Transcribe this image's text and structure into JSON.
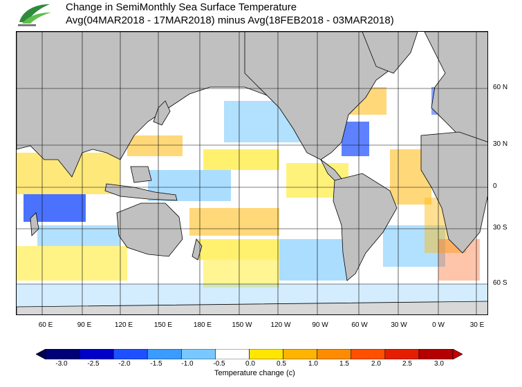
{
  "title": {
    "line1": "Change in SemiMonthly Sea Surface Temperature",
    "line2": "Avg(04MAR2018 - 17MAR2018) minus Avg(18FEB2018 - 03MAR2018)"
  },
  "map": {
    "projection": "equirectangular",
    "lon_range": [
      "40 E",
      "40 E (+360)"
    ],
    "lat_range": [
      "75 N",
      "75 S"
    ],
    "land_color": "#c0c0c0",
    "grid": true,
    "lat_labels": [
      "60 N",
      "30 N",
      "0",
      "30 S",
      "60 S"
    ],
    "lon_labels": [
      "60 E",
      "90 E",
      "120 E",
      "150 E",
      "180 E",
      "150 W",
      "120 W",
      "90 W",
      "60 W",
      "30 W",
      "0 W",
      "30 E"
    ]
  },
  "colorbar": {
    "label": "Temperature change  (c)",
    "ticks": [
      "-3.0",
      "-2.5",
      "-2.0",
      "-1.5",
      "-1.0",
      "-0.5",
      "0.0",
      "0.5",
      "1.0",
      "1.5",
      "2.0",
      "2.5",
      "3.0"
    ],
    "colors": [
      "#000078",
      "#0000c8",
      "#1e50ff",
      "#3c9bff",
      "#78c8ff",
      "#ffffff",
      "#ffe600",
      "#ffb400",
      "#ff8c00",
      "#ff5000",
      "#e61e00",
      "#b40000"
    ]
  }
}
